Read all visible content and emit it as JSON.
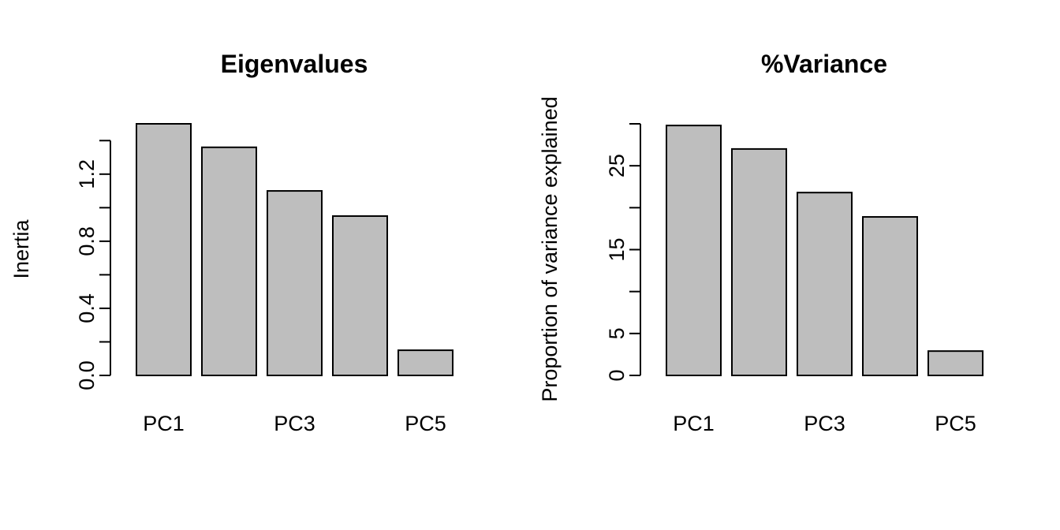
{
  "colors": {
    "bar_fill": "#bebebe",
    "bar_stroke": "#000000",
    "background": "#ffffff",
    "axis": "#000000"
  },
  "chart_data": [
    {
      "type": "bar",
      "title": "Eigenvalues",
      "xlabel": "",
      "ylabel": "Inertia",
      "categories": [
        "PC1",
        "PC2",
        "PC3",
        "PC4",
        "PC5"
      ],
      "x_tick_labels_shown": [
        "PC1",
        "PC3",
        "PC5"
      ],
      "values": [
        1.5,
        1.36,
        1.1,
        0.95,
        0.15
      ],
      "ylim": [
        0,
        1.5
      ],
      "y_ticks": [
        0.0,
        0.2,
        0.4,
        0.6,
        0.8,
        1.0,
        1.2,
        1.4
      ],
      "y_tick_labels": [
        "0.0",
        "0.4",
        "0.8",
        "1.2"
      ],
      "grid": false,
      "legend": "none"
    },
    {
      "type": "bar",
      "title": "%Variance",
      "xlabel": "",
      "ylabel": "Proportion of variance explained",
      "categories": [
        "PC1",
        "PC2",
        "PC3",
        "PC4",
        "PC5"
      ],
      "x_tick_labels_shown": [
        "PC1",
        "PC3",
        "PC5"
      ],
      "values": [
        29.8,
        27.0,
        21.8,
        18.9,
        2.9
      ],
      "ylim": [
        0,
        30
      ],
      "y_ticks": [
        0,
        5,
        10,
        15,
        20,
        25,
        30
      ],
      "y_tick_labels": [
        "0",
        "5",
        "15",
        "25"
      ],
      "grid": false,
      "legend": "none"
    }
  ]
}
